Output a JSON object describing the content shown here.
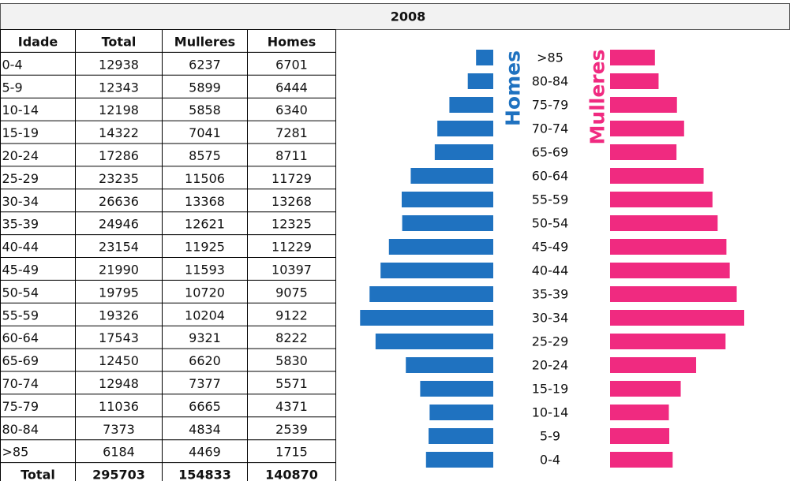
{
  "title": "2008",
  "table": {
    "columns": [
      "Idade",
      "Total",
      "Mulleres",
      "Homes"
    ],
    "rows": [
      [
        "0-4",
        12938,
        6237,
        6701
      ],
      [
        "5-9",
        12343,
        5899,
        6444
      ],
      [
        "10-14",
        12198,
        5858,
        6340
      ],
      [
        "15-19",
        14322,
        7041,
        7281
      ],
      [
        "20-24",
        17286,
        8575,
        8711
      ],
      [
        "25-29",
        23235,
        11506,
        11729
      ],
      [
        "30-34",
        26636,
        13368,
        13268
      ],
      [
        "35-39",
        24946,
        12621,
        12325
      ],
      [
        "40-44",
        23154,
        11925,
        11229
      ],
      [
        "45-49",
        21990,
        11593,
        10397
      ],
      [
        "50-54",
        19795,
        10720,
        9075
      ],
      [
        "55-59",
        19326,
        10204,
        9122
      ],
      [
        "60-64",
        17543,
        9321,
        8222
      ],
      [
        "65-69",
        12450,
        6620,
        5830
      ],
      [
        "70-74",
        12948,
        7377,
        5571
      ],
      [
        "75-79",
        11036,
        6665,
        4371
      ],
      [
        "80-84",
        7373,
        4834,
        2539
      ],
      [
        ">85",
        6184,
        4469,
        1715
      ]
    ],
    "total": [
      "Total",
      295703,
      154833,
      140870
    ]
  },
  "chart_data": {
    "type": "pyramid",
    "categories": [
      ">85",
      "80-84",
      "75-79",
      "70-74",
      "65-69",
      "60-64",
      "55-59",
      "50-54",
      "45-49",
      "40-44",
      "35-39",
      "30-34",
      "25-29",
      "20-24",
      "15-19",
      "10-14",
      "5-9",
      "0-4"
    ],
    "series": [
      {
        "name": "Homes",
        "color": "#1f72c0",
        "values": [
          1715,
          2539,
          4371,
          5571,
          5830,
          8222,
          9122,
          9075,
          10397,
          11229,
          12325,
          13268,
          11729,
          8711,
          7281,
          6340,
          6444,
          6701
        ]
      },
      {
        "name": "Mulleres",
        "color": "#f02a80",
        "values": [
          4469,
          4834,
          6665,
          7377,
          6620,
          9321,
          10204,
          10720,
          11593,
          11925,
          12621,
          13368,
          11506,
          8575,
          7041,
          5858,
          5899,
          6237
        ]
      }
    ]
  }
}
